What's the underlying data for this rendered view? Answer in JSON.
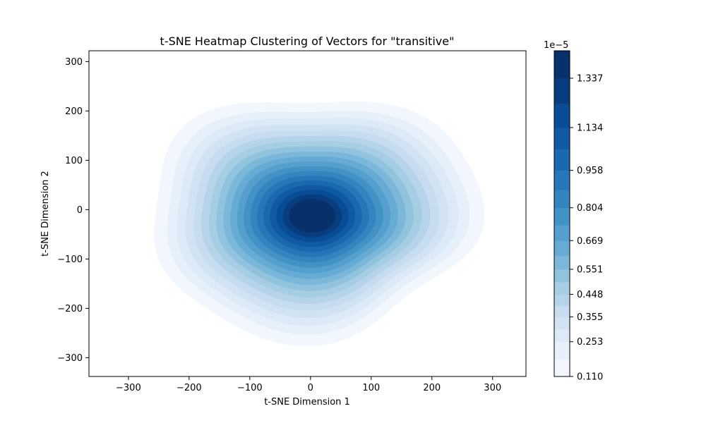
{
  "chart_data": {
    "type": "heatmap",
    "title": "t-SNE Heatmap Clustering of Vectors for \"transitive\"",
    "xlabel": "t-SNE Dimension 1",
    "ylabel": "t-SNE Dimension 2",
    "xlim": [
      -365,
      355
    ],
    "ylim": [
      -338,
      322
    ],
    "x_ticks": [
      -300,
      -200,
      -100,
      0,
      100,
      200,
      300
    ],
    "y_ticks": [
      -300,
      -200,
      -100,
      0,
      100,
      200,
      300
    ],
    "grid": false,
    "density_peak": {
      "x": 3,
      "y": -13
    },
    "colormap": "Blues",
    "colorbar": {
      "multiplier": "1e−5",
      "tick_labels": [
        "0.110",
        "0.253",
        "0.355",
        "0.448",
        "0.551",
        "0.669",
        "0.804",
        "0.958",
        "1.134",
        "1.337"
      ],
      "levels": [
        0.11,
        0.18,
        0.253,
        0.305,
        0.355,
        0.4,
        0.448,
        0.499,
        0.551,
        0.606,
        0.669,
        0.733,
        0.804,
        0.878,
        0.958,
        1.045,
        1.134,
        1.232,
        1.337,
        1.45
      ]
    }
  }
}
